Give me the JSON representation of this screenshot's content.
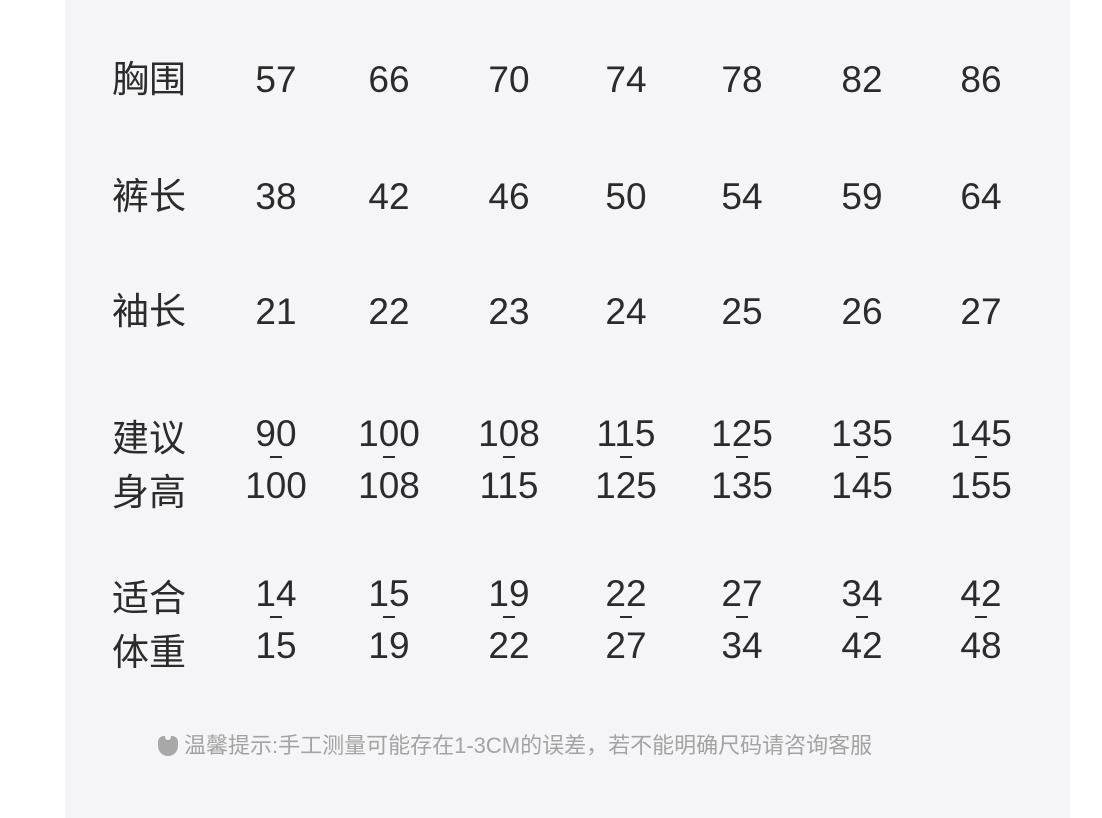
{
  "rows": [
    {
      "label": "胸围",
      "values": [
        "57",
        "66",
        "70",
        "74",
        "78",
        "82",
        "86"
      ]
    },
    {
      "label": "裤长",
      "values": [
        "38",
        "42",
        "46",
        "50",
        "54",
        "59",
        "64"
      ]
    },
    {
      "label": "袖长",
      "values": [
        "21",
        "22",
        "23",
        "24",
        "25",
        "26",
        "27"
      ]
    }
  ],
  "range_rows": [
    {
      "label_line1": "建议",
      "label_line2": "身高",
      "values": [
        [
          "90",
          "100"
        ],
        [
          "100",
          "108"
        ],
        [
          "108",
          "115"
        ],
        [
          "115",
          "125"
        ],
        [
          "125",
          "135"
        ],
        [
          "135",
          "145"
        ],
        [
          "145",
          "155"
        ]
      ]
    },
    {
      "label_line1": "适合",
      "label_line2": "体重",
      "values": [
        [
          "14",
          "15"
        ],
        [
          "15",
          "19"
        ],
        [
          "19",
          "22"
        ],
        [
          "22",
          "27"
        ],
        [
          "27",
          "34"
        ],
        [
          "34",
          "42"
        ],
        [
          "42",
          "48"
        ]
      ]
    }
  ],
  "note": {
    "icon": "bear-icon",
    "text": "温馨提示:手工测量可能存在1-3CM的误差，若不能明确尺码请咨询客服"
  }
}
